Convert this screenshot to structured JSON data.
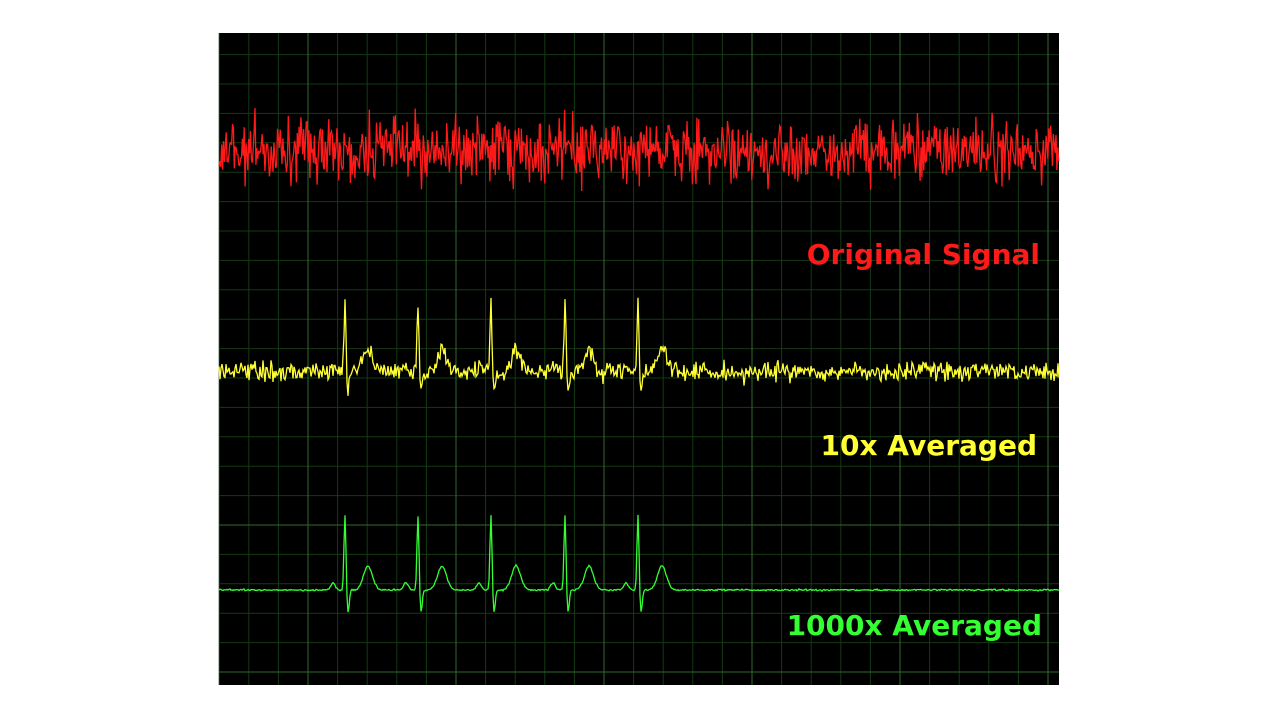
{
  "labels": {
    "original": "Original Signal",
    "averaged_10x": "10x Averaged",
    "averaged_1000x": "1000x Averaged"
  }
}
